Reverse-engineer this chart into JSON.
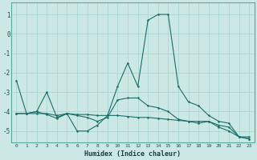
{
  "xlabel": "Humidex (Indice chaleur)",
  "background_color": "#cce8e4",
  "grid_color": "#b0d8d4",
  "line_color": "#1a6e68",
  "xlim": [
    -0.5,
    23.5
  ],
  "ylim": [
    -5.6,
    1.6
  ],
  "yticks": [
    1,
    0,
    -1,
    -2,
    -3,
    -4,
    -5
  ],
  "xticks": [
    0,
    1,
    2,
    3,
    4,
    5,
    6,
    7,
    8,
    9,
    10,
    11,
    12,
    13,
    14,
    15,
    16,
    17,
    18,
    19,
    20,
    21,
    22,
    23
  ],
  "series": [
    {
      "x": [
        0,
        1,
        2,
        3,
        4,
        5,
        6,
        7,
        8,
        9,
        10,
        11,
        12,
        13,
        14,
        15,
        16,
        17,
        18,
        19,
        20,
        21,
        22,
        23
      ],
      "y": [
        -2.4,
        -4.1,
        -4.0,
        -4.15,
        -4.35,
        -4.1,
        -5.0,
        -5.0,
        -4.7,
        -4.2,
        -2.7,
        -1.5,
        -2.7,
        0.7,
        1.0,
        1.0,
        -2.7,
        -3.5,
        -3.7,
        -4.2,
        -4.5,
        -4.6,
        -5.3,
        -5.4
      ]
    },
    {
      "x": [
        0,
        1,
        2,
        3,
        4,
        5,
        6,
        7,
        8,
        9,
        10,
        11,
        12,
        13,
        14,
        15,
        16,
        17,
        18,
        19,
        20,
        21,
        22,
        23
      ],
      "y": [
        -4.1,
        -4.1,
        -4.0,
        -3.0,
        -4.3,
        -4.1,
        -4.2,
        -4.3,
        -4.5,
        -4.3,
        -3.4,
        -3.3,
        -3.3,
        -3.7,
        -3.8,
        -4.0,
        -4.4,
        -4.5,
        -4.6,
        -4.5,
        -4.7,
        -4.8,
        -5.3,
        -5.4
      ]
    },
    {
      "x": [
        0,
        1,
        2,
        3,
        4,
        5,
        6,
        7,
        8,
        9,
        10,
        11,
        12,
        13,
        14,
        15,
        16,
        17,
        18,
        19,
        20,
        21,
        22,
        23
      ],
      "y": [
        -4.1,
        -4.1,
        -4.1,
        -4.1,
        -4.2,
        -4.1,
        -4.15,
        -4.15,
        -4.2,
        -4.2,
        -4.2,
        -4.25,
        -4.3,
        -4.3,
        -4.35,
        -4.4,
        -4.45,
        -4.5,
        -4.5,
        -4.5,
        -4.8,
        -5.0,
        -5.3,
        -5.3
      ]
    }
  ]
}
